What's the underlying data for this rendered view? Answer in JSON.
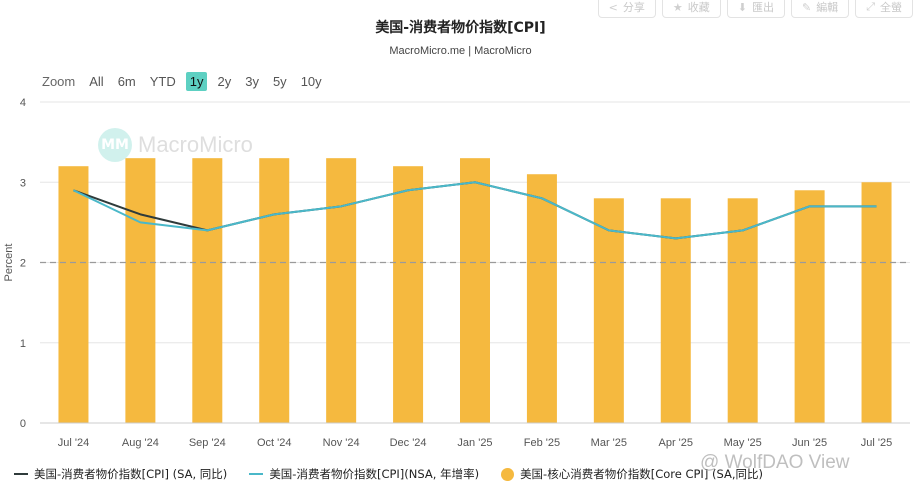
{
  "toolbar": {
    "share_label": "分享",
    "fav_label": "收藏",
    "download_label": "匯出",
    "edit_label": "編輯",
    "fullscreen_label": "全螢"
  },
  "header": {
    "title": "美国-消费者物价指数[CPI]",
    "source": "MacroMicro.me | MacroMicro"
  },
  "zoom": {
    "label": "Zoom",
    "options": [
      "All",
      "6m",
      "YTD",
      "1y",
      "2y",
      "3y",
      "5y",
      "10y"
    ],
    "active": "1y"
  },
  "watermark": {
    "logo_text": "MM",
    "brand": "MacroMicro"
  },
  "weibo_watermark": "@ WolfDAO View",
  "colors": {
    "bar": "#f5b93f",
    "cpi_sa": "#2f3b3b",
    "cpi_nsa": "#4ab8c9",
    "grid": "#e6e6e6",
    "reference": "#9a9a9a"
  },
  "chart_data": {
    "type": "bar",
    "title": "美国-消费者物价指数[CPI]",
    "ylabel": "Percent",
    "ylim": [
      0,
      4
    ],
    "yticks": [
      "0",
      "1",
      "2",
      "3",
      "4"
    ],
    "reference_line": 2,
    "categories": [
      "Jul '24",
      "Aug '24",
      "Sep '24",
      "Oct '24",
      "Nov '24",
      "Dec '24",
      "Jan '25",
      "Feb '25",
      "Mar '25",
      "Apr '25",
      "May '25",
      "Jun '25",
      "Jul '25"
    ],
    "series": [
      {
        "name": "美国-核心消费者物价指数[Core CPI] (SA,同比)",
        "type": "bar",
        "color": "#f5b93f",
        "values": [
          3.2,
          3.3,
          3.3,
          3.3,
          3.3,
          3.2,
          3.3,
          3.1,
          2.8,
          2.8,
          2.8,
          2.9,
          3.0
        ]
      },
      {
        "name": "美国-消费者物价指数[CPI] (SA, 同比)",
        "type": "line",
        "color": "#2f3b3b",
        "values": [
          2.9,
          2.6,
          2.4,
          2.6,
          2.7,
          2.9,
          3.0,
          2.8,
          2.4,
          2.3,
          2.4,
          2.7,
          2.7
        ]
      },
      {
        "name": "美国-消费者物价指数[CPI](NSA, 年增率)",
        "type": "line",
        "color": "#4ab8c9",
        "values": [
          2.9,
          2.5,
          2.4,
          2.6,
          2.7,
          2.9,
          3.0,
          2.8,
          2.4,
          2.3,
          2.4,
          2.7,
          2.7
        ]
      }
    ],
    "legend_position": "bottom"
  },
  "legend": [
    {
      "label": "美国-消费者物价指数[CPI] (SA, 同比)",
      "kind": "line",
      "color": "#2f3b3b"
    },
    {
      "label": "美国-消费者物价指数[CPI](NSA, 年增率)",
      "kind": "line",
      "color": "#4ab8c9"
    },
    {
      "label": "美国-核心消费者物价指数[Core CPI] (SA,同比)",
      "kind": "dot",
      "color": "#f5b93f"
    }
  ]
}
